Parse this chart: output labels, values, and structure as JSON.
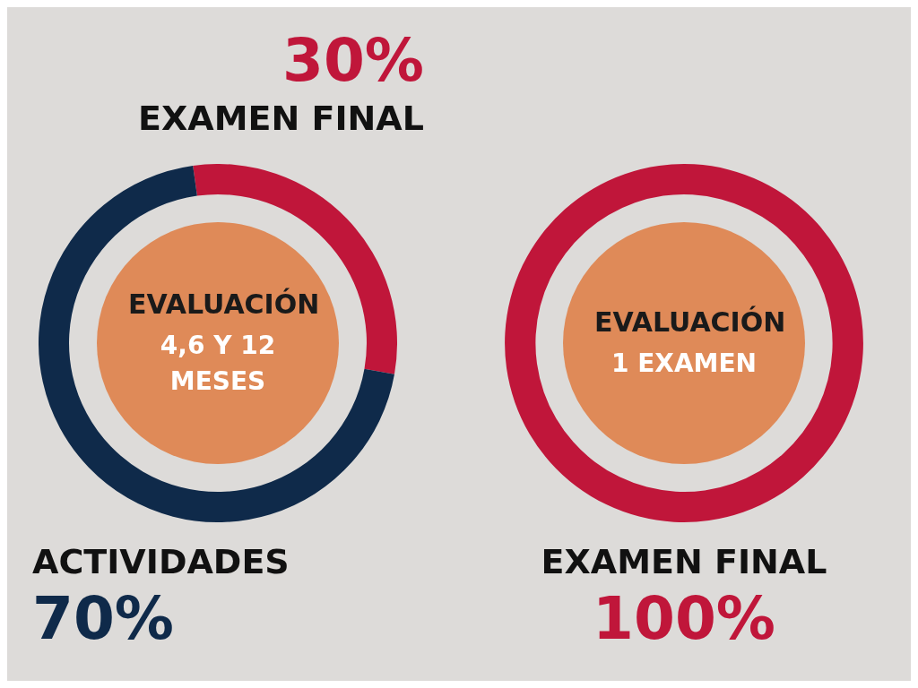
{
  "chart_data": [
    {
      "type": "donut",
      "categories": [
        "EXAMEN FINAL",
        "ACTIVIDADES"
      ],
      "values": [
        30,
        70
      ],
      "colors": [
        "#c0163a",
        "#0f2a4a"
      ],
      "value_labels": [
        "30%",
        "70%"
      ],
      "annotations": [
        "EVALUACIÓN",
        "4,6 Y 12 MESES"
      ]
    },
    {
      "type": "donut",
      "categories": [
        "EXAMEN FINAL"
      ],
      "values": [
        100
      ],
      "colors": [
        "#c0163a"
      ],
      "value_labels": [
        "100%"
      ],
      "annotations": [
        "EVALUACIÓN",
        "1 EXAMEN"
      ]
    }
  ]
}
